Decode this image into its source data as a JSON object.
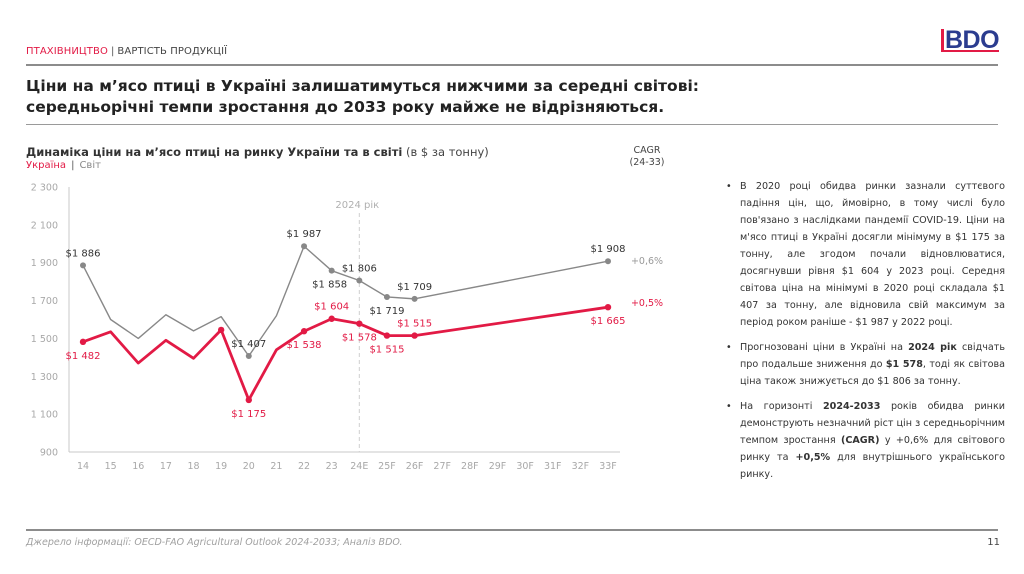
{
  "header": {
    "section_accent": "ПТАХІВНИЦТВО",
    "section_sep": "|",
    "section_rest": "ВАРТІСТЬ ПРОДУКЦІЇ",
    "logo": "BDO",
    "headline_line1": "Ціни на м’ясо птиці в Україні залишатимуться нижчими за середні світові:",
    "headline_line2": "середньорічні темпи зростання до 2033 року майже не відрізняються."
  },
  "colors": {
    "accent": "#e21a45",
    "world": "#888888",
    "logo_blue": "#2b3c8f"
  },
  "chart_data": {
    "type": "line",
    "title": "Динаміка ціни на м’ясо птиці на ринку України та в світі",
    "unit": "(в $ за тонну)",
    "xlabel": "",
    "ylabel": "",
    "ylim": [
      900,
      2300
    ],
    "yticks": [
      900,
      1100,
      1300,
      1500,
      1700,
      1900,
      2100,
      2300
    ],
    "ytick_labels": [
      "900",
      "1 100",
      "1 300",
      "1 500",
      "1 700",
      "1 900",
      "2 100",
      "2 300"
    ],
    "categories": [
      "14",
      "15",
      "16",
      "17",
      "18",
      "19",
      "20",
      "21",
      "22",
      "23",
      "24E",
      "25F",
      "26F",
      "27F",
      "28F",
      "29F",
      "30F",
      "31F",
      "32F",
      "33F"
    ],
    "grid": false,
    "legend": {
      "position": "top-left",
      "items": [
        "Україна",
        "Світ"
      ],
      "separator": "|"
    },
    "annotation": {
      "label": "2024 рік",
      "at_category": "24E"
    },
    "cagr": {
      "header_line1": "CAGR",
      "header_line2": "(24-33)",
      "world": "+0,6%",
      "ukraine": "+0,5%"
    },
    "series": [
      {
        "name": "Світ",
        "key": "world",
        "values": [
          1886,
          1600,
          1500,
          1625,
          1540,
          1615,
          1407,
          1620,
          1987,
          1858,
          1806,
          1719,
          1709,
          null,
          null,
          null,
          null,
          null,
          null,
          1908
        ],
        "markers": [
          0,
          6,
          8,
          9,
          10,
          11,
          12,
          19
        ],
        "labels": [
          {
            "i": 0,
            "text": "$1 886",
            "pos": "above"
          },
          {
            "i": 6,
            "text": "$1 407",
            "pos": "above"
          },
          {
            "i": 8,
            "text": "$1 987",
            "pos": "above"
          },
          {
            "i": 9,
            "text": "$1 858",
            "pos": "below-left"
          },
          {
            "i": 10,
            "text": "$1 806",
            "pos": "above"
          },
          {
            "i": 11,
            "text": "$1 719",
            "pos": "below"
          },
          {
            "i": 12,
            "text": "$1 709",
            "pos": "above"
          },
          {
            "i": 19,
            "text": "$1 908",
            "pos": "above"
          }
        ]
      },
      {
        "name": "Україна",
        "key": "ukraine",
        "values": [
          1482,
          1535,
          1370,
          1490,
          1395,
          1545,
          1175,
          1440,
          1538,
          1604,
          1578,
          1515,
          1515,
          null,
          null,
          null,
          null,
          null,
          null,
          1665
        ],
        "markers": [
          0,
          5,
          6,
          8,
          9,
          10,
          11,
          12,
          19
        ],
        "labels": [
          {
            "i": 0,
            "text": "$1 482",
            "pos": "below"
          },
          {
            "i": 6,
            "text": "$1 175",
            "pos": "below"
          },
          {
            "i": 8,
            "text": "$1 538",
            "pos": "below"
          },
          {
            "i": 9,
            "text": "$1 604",
            "pos": "above"
          },
          {
            "i": 10,
            "text": "$1 578",
            "pos": "below"
          },
          {
            "i": 11,
            "text": "$1 515",
            "pos": "below"
          },
          {
            "i": 12,
            "text": "$1 515",
            "pos": "above"
          },
          {
            "i": 19,
            "text": "$1 665",
            "pos": "below"
          }
        ]
      }
    ]
  },
  "bullets": [
    [
      {
        "t": "В 2020 році обидва ринки зазнали суттєвого падіння цін, що, ймовірно, в тому числі було пов'язано з наслідками пандемії COVID-19. Ціни на м'ясо птиці в Україні досягли мінімуму в $1 175 за тонну, але згодом почали відновлюватися, досягнувши рівня $1 604 у 2023 році. Середня світова ціна на мінімумі в 2020 році складала $1 407 за тонну, але відновила свій максимум за період роком раніше - $1 987 у 2022 році.",
        "b": false
      }
    ],
    [
      {
        "t": "Прогнозовані ціни в Україні на ",
        "b": false
      },
      {
        "t": "2024 рік",
        "b": true
      },
      {
        "t": " свідчать про подальше зниження до ",
        "b": false
      },
      {
        "t": "$1 578",
        "b": true
      },
      {
        "t": ", тоді як світова ціна також знижується до $1 806 за тонну.",
        "b": false
      }
    ],
    [
      {
        "t": "На горизонті ",
        "b": false
      },
      {
        "t": "2024-2033",
        "b": true
      },
      {
        "t": " років обидва ринки демонструють незначний ріст цін з середньорічним темпом зростання ",
        "b": false
      },
      {
        "t": "(CAGR)",
        "b": true
      },
      {
        "t": " у +0,6% для світового ринку та ",
        "b": false
      },
      {
        "t": "+0,5%",
        "b": true
      },
      {
        "t": " для внутрішнього українського ринку.",
        "b": false
      }
    ]
  ],
  "footer": {
    "source": "Джерело інформації: OECD-FAO Agricultural Outlook 2024-2033; Аналіз BDO.",
    "page": "11"
  }
}
